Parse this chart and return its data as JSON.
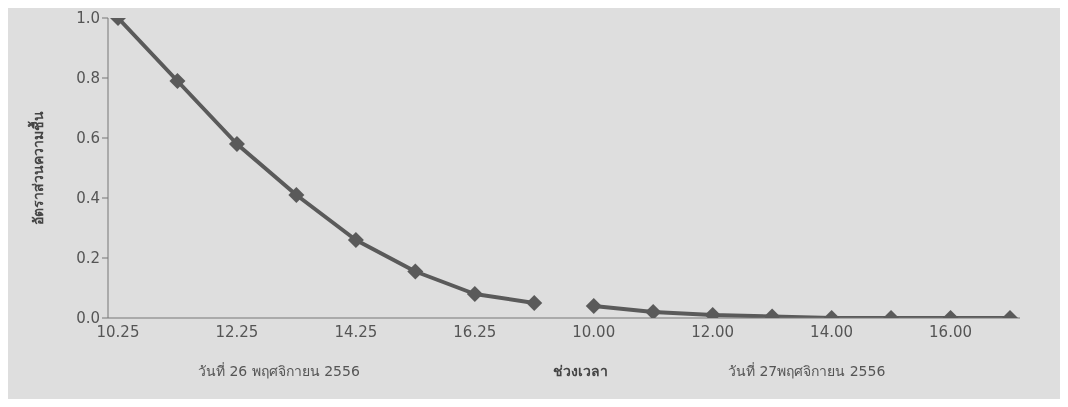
{
  "chart_data": {
    "type": "line",
    "ylabel": "อัตราส่วนความชื้น",
    "xlabel": "ช่วงเวลา",
    "annotations": [
      "วันที่ 26 พฤศจิกายน 2556",
      "วันที่ 27พฤศจิกายน 2556"
    ],
    "categories": [
      "10.25",
      null,
      "12.25",
      null,
      "14.25",
      null,
      "16.25",
      null,
      "10.00",
      null,
      "12.00",
      null,
      "14.00",
      null,
      "16.00",
      null
    ],
    "series": [
      {
        "color": "#5a5a5a",
        "values": [
          1.0,
          0.79,
          0.58,
          0.41,
          0.26,
          0.155,
          0.08,
          0.05,
          null,
          null,
          null,
          null,
          null,
          null,
          null,
          null
        ]
      },
      {
        "color": "#5a5a5a",
        "values": [
          null,
          null,
          null,
          null,
          null,
          null,
          null,
          null,
          0.04,
          0.02,
          0.01,
          0.005,
          0,
          0,
          0,
          0
        ]
      }
    ],
    "ylim": [
      0,
      1
    ],
    "yticks": [
      {
        "value": 0,
        "label": "0.0"
      },
      {
        "value": 0.2,
        "label": "0.2"
      },
      {
        "value": 0.4,
        "label": "0.4"
      },
      {
        "value": 0.6,
        "label": "0.6"
      },
      {
        "value": 0.8,
        "label": "0.8"
      },
      {
        "value": 1,
        "label": "1.0"
      }
    ],
    "grid": false,
    "marker": "diamond",
    "line_style": "solid"
  }
}
